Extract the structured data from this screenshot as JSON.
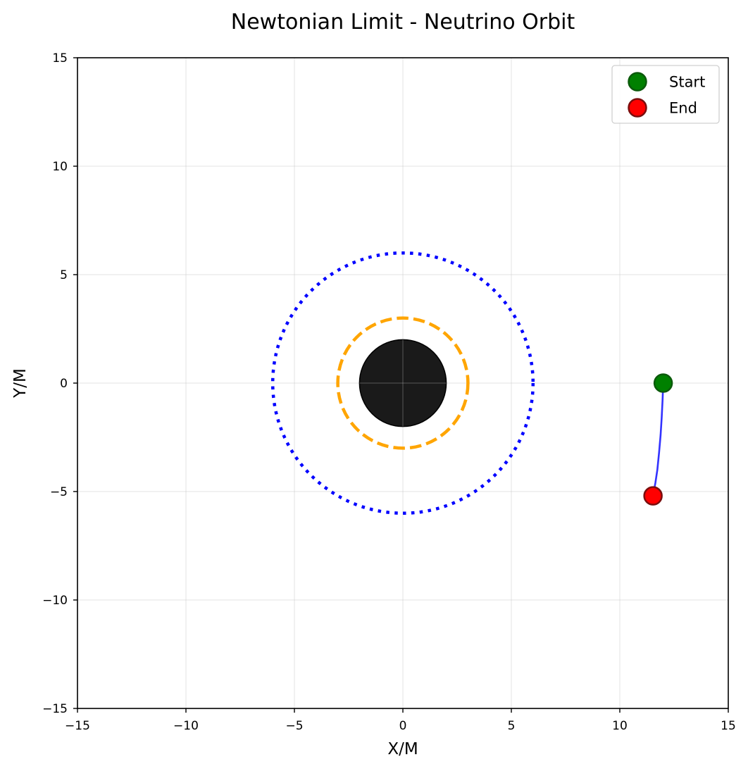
{
  "chart_data": {
    "type": "line",
    "title": "Newtonian Limit - Neutrino Orbit",
    "xlabel": "X/M",
    "ylabel": "Y/M",
    "xlim": [
      -15,
      15
    ],
    "ylim": [
      -15,
      15
    ],
    "xticks": [
      -15,
      -10,
      -5,
      0,
      5,
      10,
      15
    ],
    "yticks": [
      -15,
      -10,
      -5,
      0,
      5,
      10,
      15
    ],
    "grid": true,
    "legend_position": "top-right",
    "legend": [
      {
        "label": "Start",
        "marker": "circle",
        "color": "#008000"
      },
      {
        "label": "End",
        "marker": "circle",
        "color": "#ff0000"
      }
    ],
    "black_hole": {
      "center": [
        0,
        0
      ],
      "radius": 2,
      "color": "#1a1a1a"
    },
    "photon_sphere": {
      "center": [
        0,
        0
      ],
      "radius": 3,
      "style": "dashed",
      "color": "#ffa500"
    },
    "isco": {
      "center": [
        0,
        0
      ],
      "radius": 6,
      "style": "dotted",
      "color": "#0000ff"
    },
    "trajectory": {
      "color": "#3333ff",
      "x": [
        12.0,
        11.97,
        11.93,
        11.88,
        11.81,
        11.73,
        11.64,
        11.53
      ],
      "y": [
        0.0,
        -0.8,
        -1.6,
        -2.4,
        -3.2,
        -4.0,
        -4.6,
        -5.2
      ]
    },
    "start_point": {
      "x": 12.0,
      "y": 0.0,
      "color": "#008000"
    },
    "end_point": {
      "x": 11.53,
      "y": -5.2,
      "color": "#ff0000"
    }
  }
}
